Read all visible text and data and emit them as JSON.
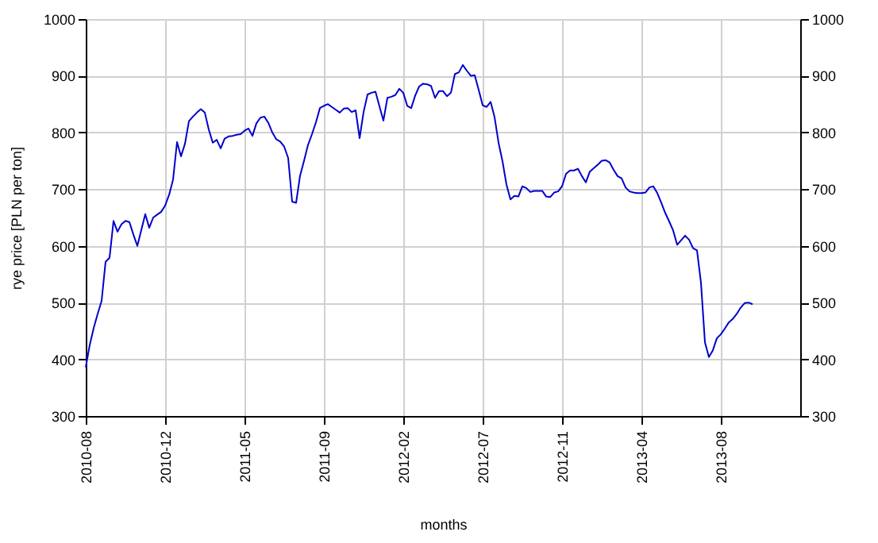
{
  "chart_data": {
    "type": "line",
    "xlabel": "months",
    "ylabel": "rye price [PLN per ton]",
    "categories": [
      "2010-08",
      null,
      null,
      null,
      null,
      null,
      null,
      null,
      null,
      null,
      null,
      null,
      null,
      null,
      null,
      null,
      null,
      null,
      null,
      null,
      "2010-12",
      null,
      null,
      null,
      null,
      null,
      null,
      null,
      null,
      null,
      null,
      null,
      null,
      null,
      null,
      null,
      null,
      null,
      null,
      null,
      "2011-05",
      null,
      null,
      null,
      null,
      null,
      null,
      null,
      null,
      null,
      null,
      null,
      null,
      null,
      null,
      null,
      null,
      null,
      null,
      null,
      "2011-09",
      null,
      null,
      null,
      null,
      null,
      null,
      null,
      null,
      null,
      null,
      null,
      null,
      null,
      null,
      null,
      null,
      null,
      null,
      null,
      "2012-02",
      null,
      null,
      null,
      null,
      null,
      null,
      null,
      null,
      null,
      null,
      null,
      null,
      null,
      null,
      null,
      null,
      null,
      null,
      null,
      "2012-07",
      null,
      null,
      null,
      null,
      null,
      null,
      null,
      null,
      null,
      null,
      null,
      null,
      null,
      null,
      null,
      null,
      null,
      null,
      null,
      "2012-11",
      null,
      null,
      null,
      null,
      null,
      null,
      null,
      null,
      null,
      null,
      null,
      null,
      null,
      null,
      null,
      null,
      null,
      null,
      null,
      "2013-04",
      null,
      null,
      null,
      null,
      null,
      null,
      null,
      null,
      null,
      null,
      null,
      null,
      null,
      null,
      null,
      null,
      null,
      null,
      null,
      "2013-08",
      null,
      null,
      null,
      null,
      null,
      null,
      null,
      null,
      null,
      null,
      null,
      null,
      null,
      null,
      null,
      null,
      null,
      null,
      null,
      null
    ],
    "series": [
      {
        "color": "#0000cc",
        "values": [
          386,
          425,
          455,
          480,
          503,
          572,
          579,
          644,
          625,
          638,
          644,
          642,
          620,
          600,
          628,
          656,
          632,
          650,
          655,
          660,
          671,
          690,
          717,
          783,
          758,
          780,
          820,
          828,
          835,
          841,
          835,
          805,
          782,
          787,
          772,
          789,
          793,
          794,
          796,
          797,
          803,
          807,
          794,
          816,
          826,
          828,
          817,
          800,
          788,
          784,
          775,
          755,
          678,
          676,
          724,
          750,
          778,
          797,
          818,
          843,
          847,
          850,
          845,
          840,
          835,
          842,
          843,
          836,
          839,
          790,
          836,
          867,
          870,
          872,
          846,
          821,
          861,
          863,
          866,
          877,
          870,
          847,
          843,
          865,
          881,
          886,
          885,
          882,
          861,
          873,
          873,
          864,
          870,
          903,
          906,
          919,
          909,
          900,
          901,
          875,
          848,
          845,
          854,
          827,
          782,
          749,
          708,
          682,
          688,
          687,
          705,
          702,
          695,
          697,
          697,
          697,
          687,
          686,
          694,
          696,
          705,
          727,
          733,
          733,
          736,
          723,
          712,
          731,
          737,
          743,
          750,
          751,
          747,
          734,
          723,
          719,
          703,
          696,
          694,
          693,
          693,
          694,
          703,
          705,
          693,
          676,
          658,
          643,
          627,
          602,
          610,
          618,
          611,
          596,
          592,
          535,
          430,
          404,
          416,
          437,
          444,
          454,
          465,
          471,
          480,
          491,
          499,
          500,
          497,
          null,
          null,
          null,
          null,
          null,
          null,
          null,
          null,
          null,
          null,
          null,
          null
        ]
      }
    ],
    "ylim": [
      300,
      1000
    ],
    "yticks": [
      300,
      400,
      500,
      600,
      700,
      800,
      900,
      1000
    ],
    "y2lim": [
      300,
      1000
    ],
    "y2ticks": [
      300,
      400,
      500,
      600,
      700,
      800,
      900,
      1000
    ],
    "grid": true,
    "line_style": "solid"
  }
}
